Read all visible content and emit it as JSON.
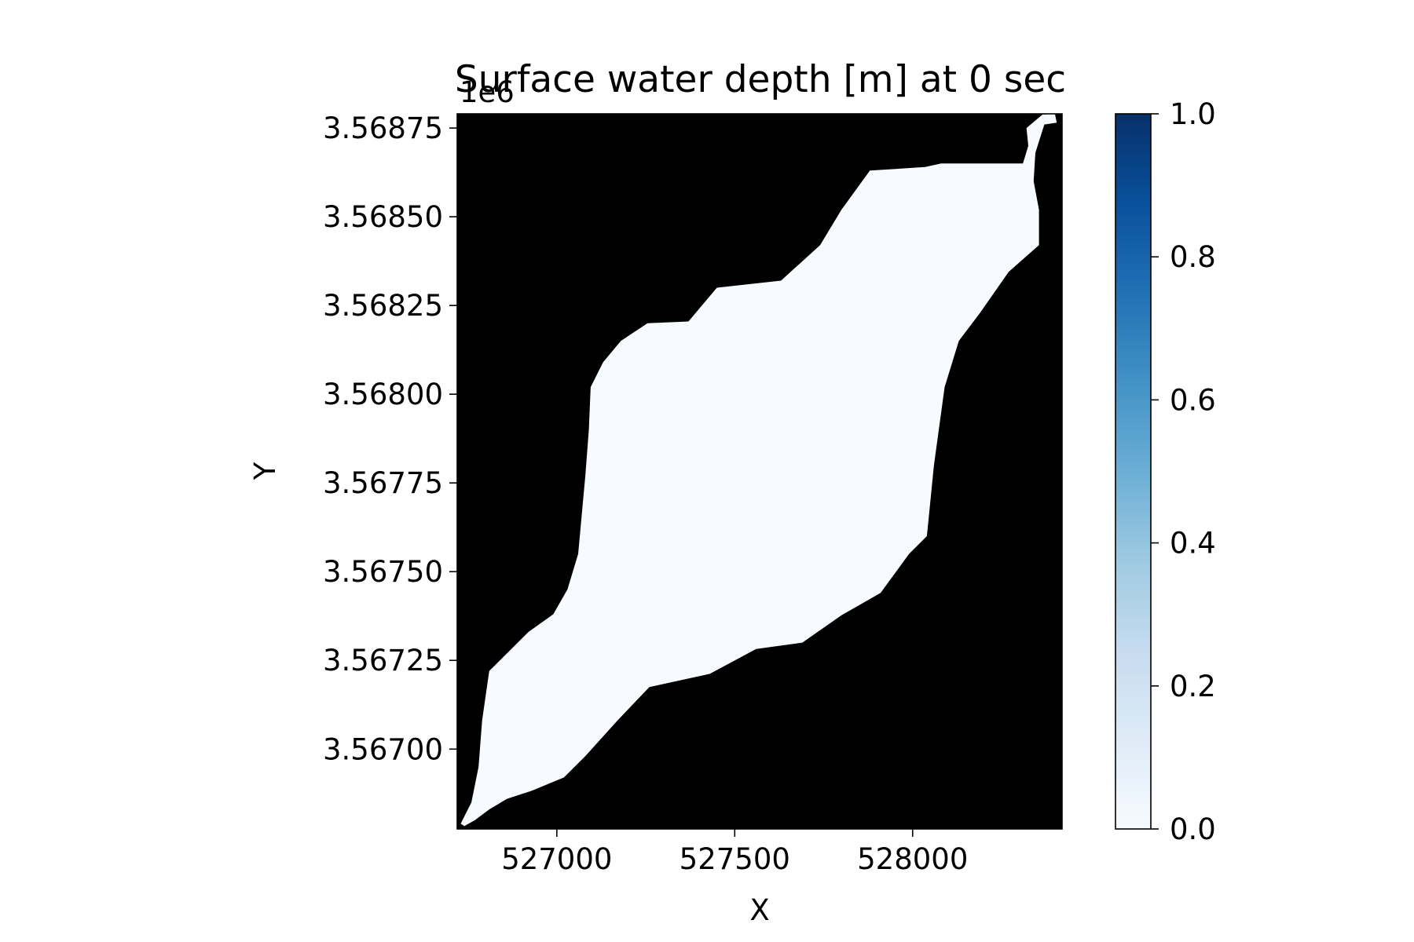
{
  "chart_data": {
    "type": "heatmap",
    "title": "Surface water depth [m] at 0 sec",
    "xlabel": "X",
    "ylabel": "Y",
    "y_offset_text": "1e6",
    "xlim": [
      526720,
      528420
    ],
    "ylim": [
      3566775,
      3568790
    ],
    "x_ticks": [
      527000,
      527500,
      528000
    ],
    "x_tick_labels": [
      "527000",
      "527500",
      "528000"
    ],
    "y_ticks": [
      3.567,
      3.56725,
      3.5675,
      3.56775,
      3.568,
      3.56825,
      3.5685,
      3.56875
    ],
    "y_tick_labels": [
      "3.56700",
      "3.56725",
      "3.56750",
      "3.56775",
      "3.56800",
      "3.56825",
      "3.56850",
      "3.56875"
    ],
    "colorbar": {
      "colormap": "Blues",
      "vmin": 0.0,
      "vmax": 1.0,
      "ticks": [
        0.0,
        0.2,
        0.4,
        0.6,
        0.8,
        1.0
      ],
      "tick_labels": [
        "0.0",
        "0.2",
        "0.4",
        "0.6",
        "0.8",
        "1.0"
      ]
    },
    "background_color": "#000000",
    "domain_value": 0.0,
    "domain_fill_color": "#f7fbff",
    "domain_outline": [
      [
        526740,
        3566783
      ],
      [
        526770,
        3566800
      ],
      [
        526810,
        3566830
      ],
      [
        526860,
        3566860
      ],
      [
        526930,
        3566883
      ],
      [
        527020,
        3566920
      ],
      [
        527080,
        3566980
      ],
      [
        527170,
        3567080
      ],
      [
        527260,
        3567175
      ],
      [
        527430,
        3567212
      ],
      [
        527560,
        3567282
      ],
      [
        527690,
        3567300
      ],
      [
        527800,
        3567377
      ],
      [
        527910,
        3567440
      ],
      [
        527990,
        3567550
      ],
      [
        528040,
        3567600
      ],
      [
        528060,
        3567800
      ],
      [
        528090,
        3568020
      ],
      [
        528130,
        3568150
      ],
      [
        528190,
        3568230
      ],
      [
        528270,
        3568345
      ],
      [
        528355,
        3568420
      ],
      [
        528355,
        3568520
      ],
      [
        528340,
        3568600
      ],
      [
        528345,
        3568680
      ],
      [
        528370,
        3568760
      ],
      [
        528405,
        3568765
      ],
      [
        528400,
        3568790
      ],
      [
        528365,
        3568788
      ],
      [
        528320,
        3568750
      ],
      [
        528325,
        3568700
      ],
      [
        528310,
        3568650
      ],
      [
        528080,
        3568650
      ],
      [
        528035,
        3568640
      ],
      [
        527880,
        3568630
      ],
      [
        527800,
        3568520
      ],
      [
        527740,
        3568420
      ],
      [
        527630,
        3568320
      ],
      [
        527540,
        3568310
      ],
      [
        527450,
        3568300
      ],
      [
        527370,
        3568205
      ],
      [
        527255,
        3568200
      ],
      [
        527180,
        3568150
      ],
      [
        527130,
        3568090
      ],
      [
        527095,
        3568020
      ],
      [
        527090,
        3567900
      ],
      [
        527080,
        3567770
      ],
      [
        527060,
        3567550
      ],
      [
        527030,
        3567450
      ],
      [
        526990,
        3567380
      ],
      [
        526920,
        3567330
      ],
      [
        526850,
        3567260
      ],
      [
        526810,
        3567220
      ],
      [
        526800,
        3567150
      ],
      [
        526790,
        3567080
      ],
      [
        526780,
        3566950
      ],
      [
        526760,
        3566850
      ],
      [
        526730,
        3566790
      ]
    ]
  }
}
